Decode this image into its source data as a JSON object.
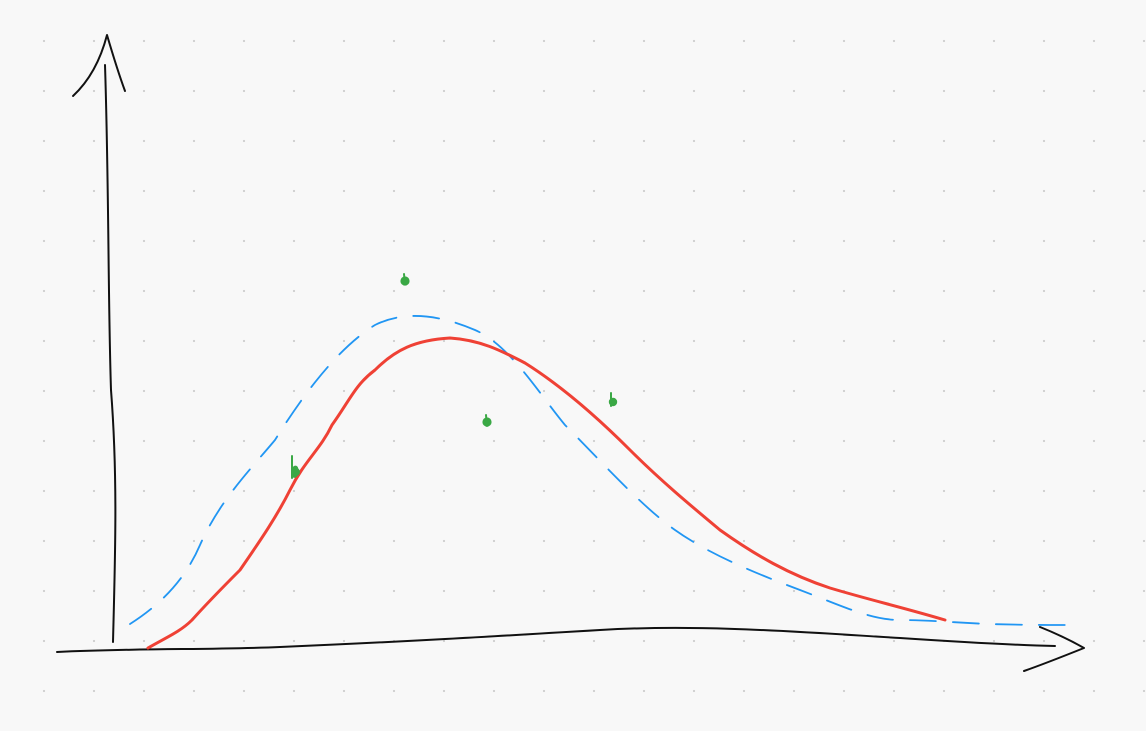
{
  "canvas": {
    "background": "#f8f8f8",
    "grid_dot_color": "#d2d2d2"
  },
  "colors": {
    "axis": "#111111",
    "red_curve": "#ef4135",
    "blue_dashed_curve": "#2196f3",
    "green_points": "#3aa845"
  }
}
